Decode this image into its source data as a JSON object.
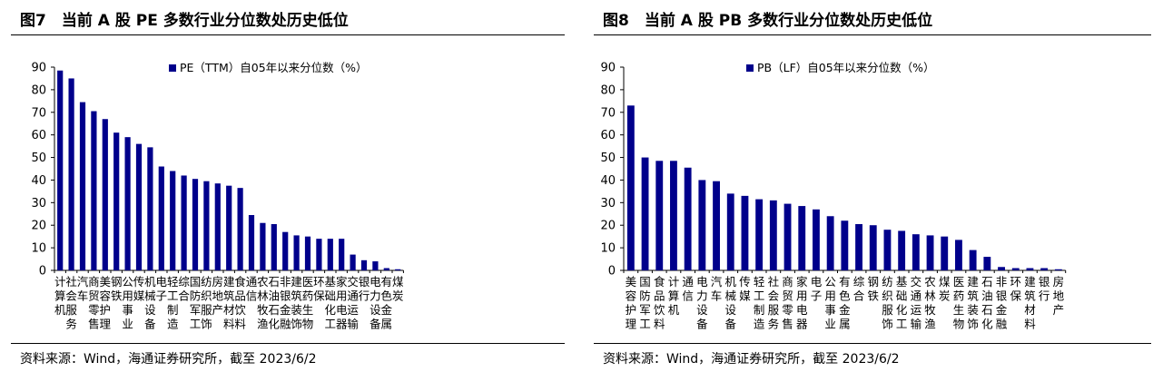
{
  "chart_data": [
    {
      "type": "bar",
      "title": "图7　当前 A 股 PE 多数行业分位数处历史低位",
      "source": "资料来源：Wind，海通证券研究所，截至 2023/6/2",
      "legend": "PE（TTM）自05年以来分位数（%）",
      "legend_position": "top-center",
      "color": "#00008B",
      "ylim": [
        0,
        90
      ],
      "yticks": [
        0,
        10,
        20,
        30,
        40,
        50,
        60,
        70,
        80,
        90
      ],
      "grid": false,
      "categories": [
        "计算机",
        "社会服务",
        "汽车",
        "商贸零售",
        "美容护理",
        "钢铁",
        "公用事业",
        "传媒",
        "机械设备",
        "电子",
        "轻工制造",
        "综合",
        "国防军工",
        "纺织服饰",
        "房地产",
        "建筑材料",
        "食品饮料",
        "通信",
        "农林牧渔",
        "石油石化",
        "非银金融",
        "建筑装饰",
        "医药生物",
        "环保",
        "基础化工",
        "家用电器",
        "交通运输",
        "银行",
        "电力设备",
        "有色金属",
        "煤炭"
      ],
      "values": [
        88.5,
        85,
        74.5,
        70.5,
        67,
        61,
        59,
        56,
        54.5,
        46,
        44,
        42,
        40.5,
        39.5,
        38.5,
        37.5,
        36.5,
        24.5,
        21,
        20.5,
        17,
        15.5,
        15,
        14,
        14,
        14,
        7,
        4.5,
        4,
        1,
        0.5
      ]
    },
    {
      "type": "bar",
      "title": "图8　当前 A 股 PB 多数行业分位数处历史低位",
      "source": "资料来源：Wind，海通证券研究所，截至 2023/6/2",
      "legend": "PB（LF）自05年以来分位数（%）",
      "legend_position": "top-center",
      "color": "#00008B",
      "ylim": [
        0,
        90
      ],
      "yticks": [
        0,
        10,
        20,
        30,
        40,
        50,
        60,
        70,
        80,
        90
      ],
      "grid": false,
      "categories": [
        "美容护理",
        "国防军工",
        "食品饮料",
        "计算机",
        "通信",
        "电力设备",
        "汽车",
        "机械设备",
        "传媒",
        "轻工制造",
        "社会服务",
        "商贸零售",
        "家用电器",
        "电子",
        "公用事业",
        "有色金属",
        "综合",
        "钢铁",
        "纺织服饰",
        "基础化工",
        "交通运输",
        "农林牧渔",
        "煤炭",
        "医药生物",
        "建筑装饰",
        "石油石化",
        "非银金融",
        "环保",
        "建筑材料",
        "银行",
        "房地产"
      ],
      "values": [
        73,
        50,
        48.5,
        48.5,
        45.5,
        40,
        39.5,
        34,
        33,
        31.5,
        31,
        29.5,
        28.5,
        27,
        24,
        22,
        20.5,
        20,
        18,
        17.5,
        16,
        15.5,
        15,
        13.5,
        9,
        6,
        1.5,
        1,
        1,
        1,
        0.5
      ]
    }
  ]
}
